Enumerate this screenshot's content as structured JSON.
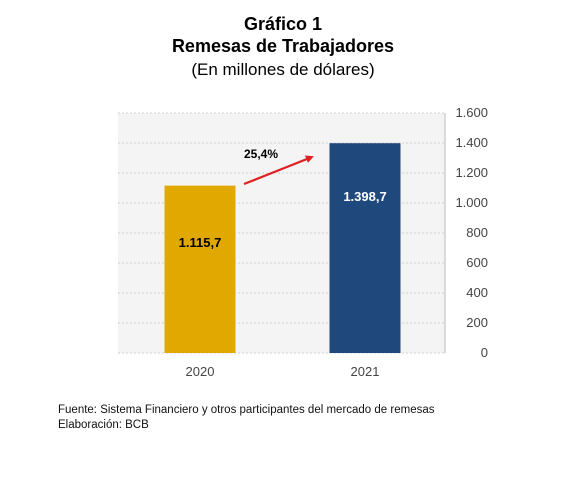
{
  "header": {
    "figure_number": "Gráfico 1",
    "title": "Remesas de Trabajadores",
    "subtitle": "(En millones de dólares)"
  },
  "chart_data": {
    "type": "bar",
    "categories": [
      "2020",
      "2021"
    ],
    "values": [
      1115.7,
      1398.7
    ],
    "value_labels": [
      "1.115,7",
      "1.398,7"
    ],
    "bar_colors": [
      "#E0A800",
      "#1F497D"
    ],
    "value_label_colors": [
      "#000000",
      "#FFFFFF"
    ],
    "ylim": [
      0,
      1600
    ],
    "yticks": [
      0,
      200,
      400,
      600,
      800,
      1000,
      1200,
      1400,
      1600
    ],
    "ytick_labels": [
      "0",
      "200",
      "400",
      "600",
      "800",
      "1.000",
      "1.200",
      "1.400",
      "1.600"
    ],
    "y_axis_side": "right",
    "grid": true,
    "annotation": {
      "text": "25,4%",
      "arrow_color": "#E02020"
    }
  },
  "footer": {
    "source": "Fuente: Sistema Financiero y otros participantes del mercado de remesas",
    "elaboration": "Elaboración: BCB"
  }
}
